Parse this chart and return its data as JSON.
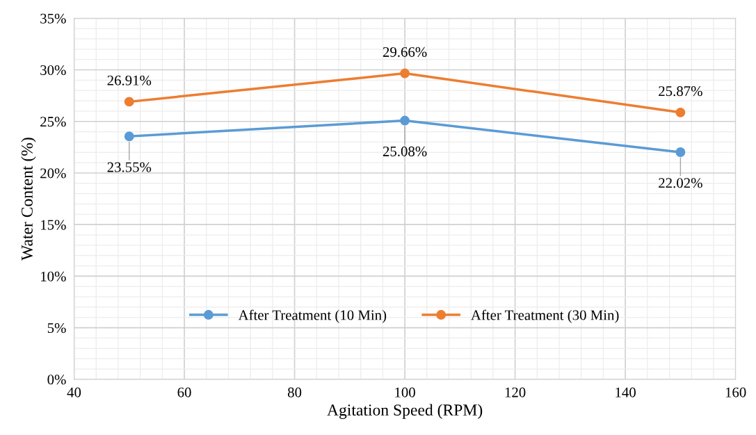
{
  "chart_data": {
    "type": "line",
    "xlabel": "Agitation Speed (RPM)",
    "ylabel": "Water Content (%)",
    "x": [
      50,
      100,
      150
    ],
    "series": [
      {
        "name": "After Treatment (10 Min)",
        "color": "#5b9bd5",
        "values": [
          23.55,
          25.08,
          22.02
        ],
        "value_labels": [
          "23.55%",
          "25.08%",
          "22.02%"
        ]
      },
      {
        "name": "After Treatment (30 Min)",
        "color": "#ed7d31",
        "values": [
          26.91,
          29.66,
          25.87
        ],
        "value_labels": [
          "26.91%",
          "29.66%",
          "25.87%"
        ]
      }
    ],
    "xlim": [
      40,
      160
    ],
    "xticks": [
      40,
      60,
      80,
      100,
      120,
      140,
      160
    ],
    "ylim": [
      0,
      35
    ],
    "yticks": [
      {
        "value": 0,
        "label": "0%"
      },
      {
        "value": 5,
        "label": "5%"
      },
      {
        "value": 10,
        "label": "10%"
      },
      {
        "value": 15,
        "label": "15%"
      },
      {
        "value": 20,
        "label": "20%"
      },
      {
        "value": 25,
        "label": "25%"
      },
      {
        "value": 30,
        "label": "30%"
      },
      {
        "value": 35,
        "label": "35%"
      }
    ],
    "grid": true,
    "legend": "bottom",
    "marker": "circle",
    "line_style": "solid"
  }
}
